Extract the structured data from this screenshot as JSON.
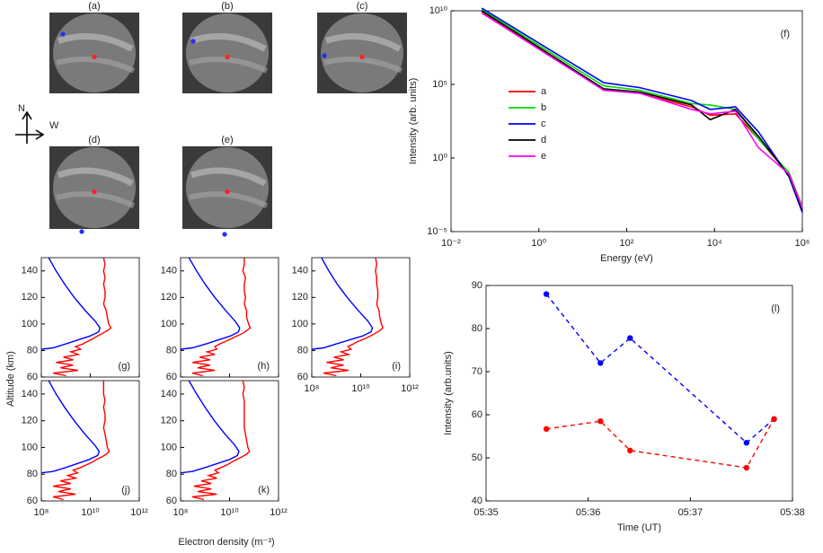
{
  "images": [
    {
      "label": "(a)"
    },
    {
      "label": "(b)"
    },
    {
      "label": "(c)"
    },
    {
      "label": "(d)"
    },
    {
      "label": "(e)"
    }
  ],
  "compass": {
    "north": "N",
    "west": "W"
  },
  "chart_data": [
    {
      "type": "line",
      "ylabel": "Altitude (km)",
      "xlabel": "Electron density (m⁻³)",
      "xlog": true,
      "xlim": [
        100000000.0,
        1000000000000.0
      ],
      "xticks": [
        {
          "value": 100000000.0,
          "label": "10⁸"
        },
        {
          "value": 10000000000.0,
          "label": "10¹⁰"
        },
        {
          "value": 1000000000000.0,
          "label": "10¹²"
        }
      ],
      "ylim": [
        60,
        150
      ],
      "yticks": [
        60,
        80,
        100,
        120,
        140
      ],
      "panels": [
        {
          "label": "(g)",
          "series": [
            {
              "color": "#0000ff",
              "altitude": [
                150,
                140,
                130,
                120,
                110,
                102,
                97,
                94,
                91,
                88,
                85,
                82,
                81
              ],
              "values": [
                200000000.0,
                400000000.0,
                900000000.0,
                2200000000.0,
                6300000000.0,
                16000000000.0,
                25000000000.0,
                22000000000.0,
                10000000000.0,
                3200000000.0,
                1000000000.0,
                300000000.0,
                100000000.0
              ]
            },
            {
              "color": "#ff0000",
              "altitude": [
                150,
                145,
                140,
                135,
                130,
                125,
                120,
                115,
                110,
                105,
                100,
                97,
                95,
                93,
                91,
                89,
                87,
                85,
                83,
                81,
                79,
                77,
                75,
                73,
                71,
                69,
                67,
                65,
                63,
                61
              ],
              "values": [
                35000000000.0,
                40000000000.0,
                35000000000.0,
                40000000000.0,
                35000000000.0,
                40000000000.0,
                40000000000.0,
                35000000000.0,
                45000000000.0,
                50000000000.0,
                56000000000.0,
                70000000000.0,
                50000000000.0,
                32000000000.0,
                20000000000.0,
                13000000000.0,
                8000000000.0,
                5000000000.0,
                2500000000.0,
                4000000000.0,
                1600000000.0,
                3200000000.0,
                800000000.0,
                2000000000.0,
                400000000.0,
                2000000000.0,
                600000000.0,
                3200000000.0,
                300000000.0,
                1000000000.0
              ]
            }
          ]
        },
        {
          "label": "(h)",
          "series": [
            {
              "color": "#0000ff",
              "altitude": [
                150,
                140,
                130,
                120,
                110,
                102,
                97,
                94,
                91,
                88,
                85,
                82,
                81
              ],
              "values": [
                220000000.0,
                450000000.0,
                1000000000.0,
                2500000000.0,
                7000000000.0,
                17000000000.0,
                26000000000.0,
                23000000000.0,
                11000000000.0,
                3500000000.0,
                1100000000.0,
                300000000.0,
                100000000.0
              ]
            },
            {
              "color": "#ff0000",
              "altitude": [
                150,
                145,
                140,
                135,
                130,
                125,
                120,
                115,
                110,
                105,
                100,
                97,
                95,
                93,
                91,
                89,
                87,
                85,
                83,
                81,
                79,
                77,
                75,
                73,
                71,
                69,
                67,
                65,
                63,
                61
              ],
              "values": [
                40000000000.0,
                40000000000.0,
                35000000000.0,
                45000000000.0,
                40000000000.0,
                40000000000.0,
                45000000000.0,
                40000000000.0,
                50000000000.0,
                50000000000.0,
                60000000000.0,
                70000000000.0,
                50000000000.0,
                35000000000.0,
                20000000000.0,
                12000000000.0,
                7000000000.0,
                4000000000.0,
                2500000000.0,
                3000000000.0,
                1200000000.0,
                2500000000.0,
                600000000.0,
                1600000000.0,
                300000000.0,
                1600000000.0,
                500000000.0,
                2500000000.0,
                300000000.0,
                800000000.0
              ]
            }
          ]
        },
        {
          "label": "(i)",
          "series": [
            {
              "color": "#0000ff",
              "altitude": [
                150,
                140,
                130,
                120,
                110,
                102,
                97,
                94,
                91,
                88,
                85,
                82,
                81
              ],
              "values": [
                250000000.0,
                500000000.0,
                1100000000.0,
                2800000000.0,
                8000000000.0,
                20000000000.0,
                30000000000.0,
                26000000000.0,
                12000000000.0,
                3500000000.0,
                1000000000.0,
                300000000.0,
                100000000.0
              ]
            },
            {
              "color": "#ff0000",
              "altitude": [
                150,
                145,
                140,
                135,
                130,
                125,
                120,
                115,
                110,
                105,
                100,
                97,
                95,
                93,
                91,
                89,
                87,
                85,
                83,
                81,
                79,
                77,
                75,
                73,
                71,
                69,
                67,
                65,
                63,
                61
              ],
              "values": [
                40000000000.0,
                45000000000.0,
                40000000000.0,
                45000000000.0,
                45000000000.0,
                50000000000.0,
                50000000000.0,
                45000000000.0,
                56000000000.0,
                60000000000.0,
                70000000000.0,
                80000000000.0,
                60000000000.0,
                40000000000.0,
                25000000000.0,
                15000000000.0,
                8000000000.0,
                5000000000.0,
                3000000000.0,
                4000000000.0,
                1600000000.0,
                3200000000.0,
                800000000.0,
                2000000000.0,
                400000000.0,
                2000000000.0,
                600000000.0,
                3200000000.0,
                300000000.0,
                1000000000.0
              ]
            }
          ]
        },
        {
          "label": "(j)",
          "series": [
            {
              "color": "#0000ff",
              "altitude": [
                150,
                140,
                130,
                120,
                110,
                102,
                97,
                94,
                91,
                88,
                85,
                82,
                81
              ],
              "values": [
                200000000.0,
                400000000.0,
                900000000.0,
                2200000000.0,
                6000000000.0,
                15000000000.0,
                23000000000.0,
                20000000000.0,
                9000000000.0,
                3000000000.0,
                1000000000.0,
                300000000.0,
                100000000.0
              ]
            },
            {
              "color": "#ff0000",
              "altitude": [
                150,
                145,
                140,
                135,
                130,
                125,
                120,
                115,
                110,
                105,
                100,
                97,
                95,
                93,
                91,
                89,
                87,
                85,
                83,
                81,
                79,
                77,
                75,
                73,
                71,
                69,
                67,
                65,
                63,
                61
              ],
              "values": [
                35000000000.0,
                35000000000.0,
                35000000000.0,
                40000000000.0,
                35000000000.0,
                40000000000.0,
                40000000000.0,
                35000000000.0,
                40000000000.0,
                45000000000.0,
                50000000000.0,
                60000000000.0,
                45000000000.0,
                30000000000.0,
                18000000000.0,
                12000000000.0,
                7000000000.0,
                4000000000.0,
                2000000000.0,
                3000000000.0,
                1200000000.0,
                2500000000.0,
                600000000.0,
                1600000000.0,
                300000000.0,
                1600000000.0,
                500000000.0,
                2500000000.0,
                300000000.0,
                800000000.0
              ]
            }
          ]
        },
        {
          "label": "(k)",
          "series": [
            {
              "color": "#0000ff",
              "altitude": [
                150,
                140,
                130,
                120,
                110,
                102,
                97,
                94,
                91,
                88,
                85,
                82,
                81
              ],
              "values": [
                220000000.0,
                450000000.0,
                1000000000.0,
                2400000000.0,
                6500000000.0,
                16000000000.0,
                24000000000.0,
                21000000000.0,
                10000000000.0,
                3200000000.0,
                1000000000.0,
                300000000.0,
                100000000.0
              ]
            },
            {
              "color": "#ff0000",
              "altitude": [
                150,
                145,
                140,
                135,
                130,
                125,
                120,
                115,
                110,
                105,
                100,
                97,
                95,
                93,
                91,
                89,
                87,
                85,
                83,
                81,
                79,
                77,
                75,
                73,
                71,
                69,
                67,
                65,
                63,
                61
              ],
              "values": [
                35000000000.0,
                40000000000.0,
                35000000000.0,
                40000000000.0,
                40000000000.0,
                40000000000.0,
                40000000000.0,
                40000000000.0,
                45000000000.0,
                50000000000.0,
                56000000000.0,
                65000000000.0,
                50000000000.0,
                32000000000.0,
                20000000000.0,
                12000000000.0,
                8000000000.0,
                4500000000.0,
                2500000000.0,
                3500000000.0,
                1400000000.0,
                3000000000.0,
                700000000.0,
                1800000000.0,
                350000000.0,
                1800000000.0,
                500000000.0,
                3000000000.0,
                300000000.0,
                900000000.0
              ]
            }
          ]
        }
      ]
    },
    {
      "type": "line",
      "label": "(f)",
      "xlabel": "Energy (eV)",
      "ylabel": "Intensity (arb. units)",
      "xlog": true,
      "ylog": true,
      "xlim": [
        0.01,
        1000000
      ],
      "xticks": [
        {
          "value": 0.01,
          "label": "10⁻²"
        },
        {
          "value": 1,
          "label": "10⁰"
        },
        {
          "value": 100,
          "label": "10²"
        },
        {
          "value": 10000,
          "label": "10⁴"
        },
        {
          "value": 1000000,
          "label": "10⁶"
        }
      ],
      "ylim": [
        1e-05,
        10000000000
      ],
      "yticks": [
        {
          "value": 1e-05,
          "label": "10⁻⁵"
        },
        {
          "value": 1,
          "label": "10⁰"
        },
        {
          "value": 100000,
          "label": "10⁵"
        },
        {
          "value": 10000000000,
          "label": "10¹⁰"
        }
      ],
      "legend": "center left",
      "x": [
        0.05,
        30,
        200,
        3000,
        8000,
        30000,
        100000,
        500000,
        1000000
      ],
      "series": [
        {
          "name": "a",
          "color": "#ff0000",
          "values": [
            9000000000.0,
            40000.0,
            25000.0,
            3000.0,
            800,
            1000,
            20,
            0.08,
            0.0003
          ]
        },
        {
          "name": "b",
          "color": "#00dd00",
          "values": [
            12000000000.0,
            80000.0,
            40000.0,
            5000.0,
            4000.0,
            2000.0,
            20,
            0.1,
            0.0005
          ]
        },
        {
          "name": "c",
          "color": "#0000ff",
          "values": [
            15000000000.0,
            130000.0,
            60000.0,
            8000.0,
            2000.0,
            3000.0,
            60,
            0.05,
            0.0002
          ]
        },
        {
          "name": "d",
          "color": "#000000",
          "values": [
            10000000000.0,
            50000.0,
            30000.0,
            4000.0,
            400,
            2000.0,
            30,
            0.06,
            0.0003
          ]
        },
        {
          "name": "e",
          "color": "#ff00ff",
          "values": [
            7000000000.0,
            40000.0,
            25000.0,
            2000.0,
            1000,
            1500,
            5,
            0.08,
            0.0004
          ]
        }
      ]
    },
    {
      "type": "line",
      "label": "(l)",
      "xlabel": "Time (UT)",
      "ylabel": "Intensity (arb.units)",
      "linestyle": "dashed",
      "markers": true,
      "xlim": [
        335,
        338
      ],
      "xticks": [
        {
          "value": 335,
          "label": "05:35"
        },
        {
          "value": 336,
          "label": "05:36"
        },
        {
          "value": 337,
          "label": "05:37"
        },
        {
          "value": 338,
          "label": "05:38"
        }
      ],
      "ylim": [
        40,
        90
      ],
      "yticks": [
        40,
        50,
        60,
        70,
        80,
        90
      ],
      "x": [
        335.59,
        336.12,
        336.41,
        337.55,
        337.82
      ],
      "series": [
        {
          "color": "#0000ff",
          "values": [
            88,
            72,
            77.8,
            53.5,
            59
          ]
        },
        {
          "color": "#ff0000",
          "values": [
            56.7,
            58.5,
            51.7,
            47.7,
            59
          ]
        }
      ]
    }
  ]
}
